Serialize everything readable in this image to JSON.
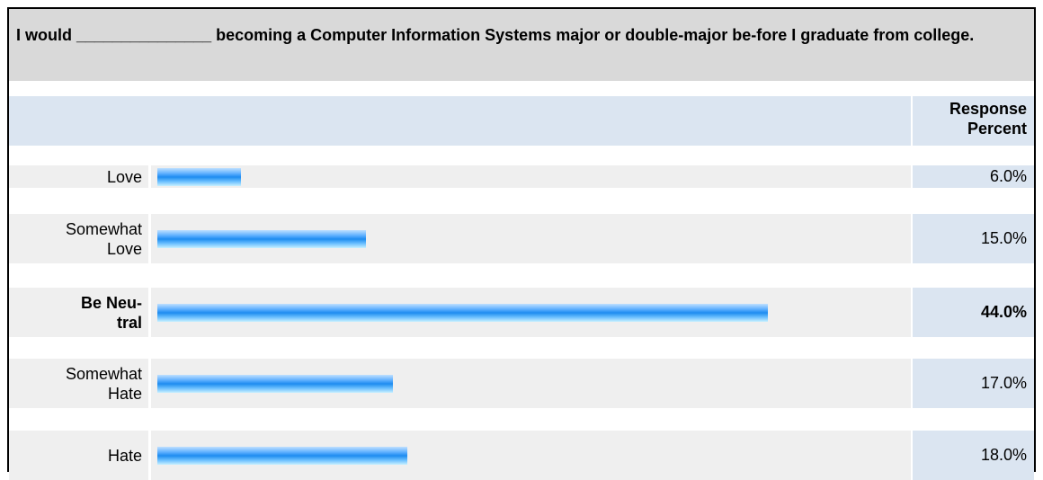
{
  "question": "I would _______________ becoming a Computer Information Systems major or double-major be-fore I graduate from college.",
  "header": {
    "response_percent": "Response Percent"
  },
  "chart_data": {
    "type": "bar",
    "orientation": "horizontal",
    "categories": [
      "Love",
      "Somewhat Love",
      "Be Neu-tral",
      "Somewhat Hate",
      "Hate"
    ],
    "values": [
      6.0,
      15.0,
      44.0,
      17.0,
      18.0
    ],
    "value_labels": [
      "6.0%",
      "15.0%",
      "44.0%",
      "17.0%",
      "18.0%"
    ],
    "highlighted": [
      false,
      false,
      true,
      false,
      false
    ],
    "xlim": [
      0,
      52
    ],
    "colors": {
      "bar": "#2e8ff0",
      "row_bg": "#efefef",
      "pct_bg": "#dbe5f1",
      "question_bg": "#d9d9d9"
    }
  }
}
